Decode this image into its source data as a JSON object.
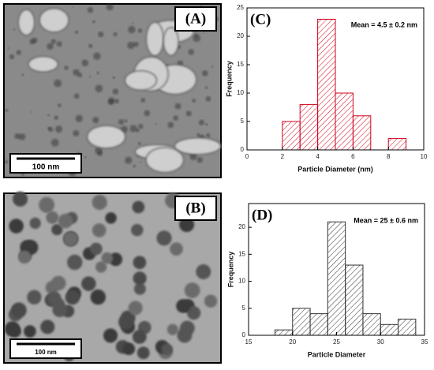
{
  "images": [
    {
      "label": "(A)",
      "scale_bar": "100 nm"
    },
    {
      "label": "(B)",
      "scale_bar": "100 nm"
    }
  ],
  "chart_data": [
    {
      "type": "histogram",
      "panel_label": "(C)",
      "annotation": "Mean = 4.5 ± 0.2 nm",
      "x_label": "Particle Diameter (nm)",
      "y_label": "Frequency",
      "bins": [
        2,
        3,
        4,
        5,
        6,
        7,
        8,
        9
      ],
      "counts": [
        5,
        8,
        23,
        10,
        6,
        0,
        2
      ],
      "color": "#d0021b",
      "xlim": [
        0,
        10
      ],
      "xticks": [
        0,
        2,
        4,
        6,
        8,
        10
      ],
      "ylim": [
        0,
        25
      ],
      "yticks": [
        0,
        5,
        10,
        15,
        20,
        25
      ]
    },
    {
      "type": "histogram",
      "panel_label": "(D)",
      "annotation": "Mean = 25 ± 0.6 nm",
      "x_label": "Particle Diameter",
      "y_label": "Frequency",
      "bins": [
        18,
        20,
        22,
        24,
        26,
        28,
        30,
        32,
        34
      ],
      "counts": [
        1,
        5,
        4,
        21,
        13,
        4,
        2,
        3
      ],
      "color": "#333333",
      "xlim": [
        15,
        35
      ],
      "xticks": [
        15,
        20,
        25,
        30,
        35
      ],
      "ylim": [
        0,
        24.4
      ],
      "yticks": [
        0,
        5,
        10,
        15,
        20
      ]
    }
  ]
}
